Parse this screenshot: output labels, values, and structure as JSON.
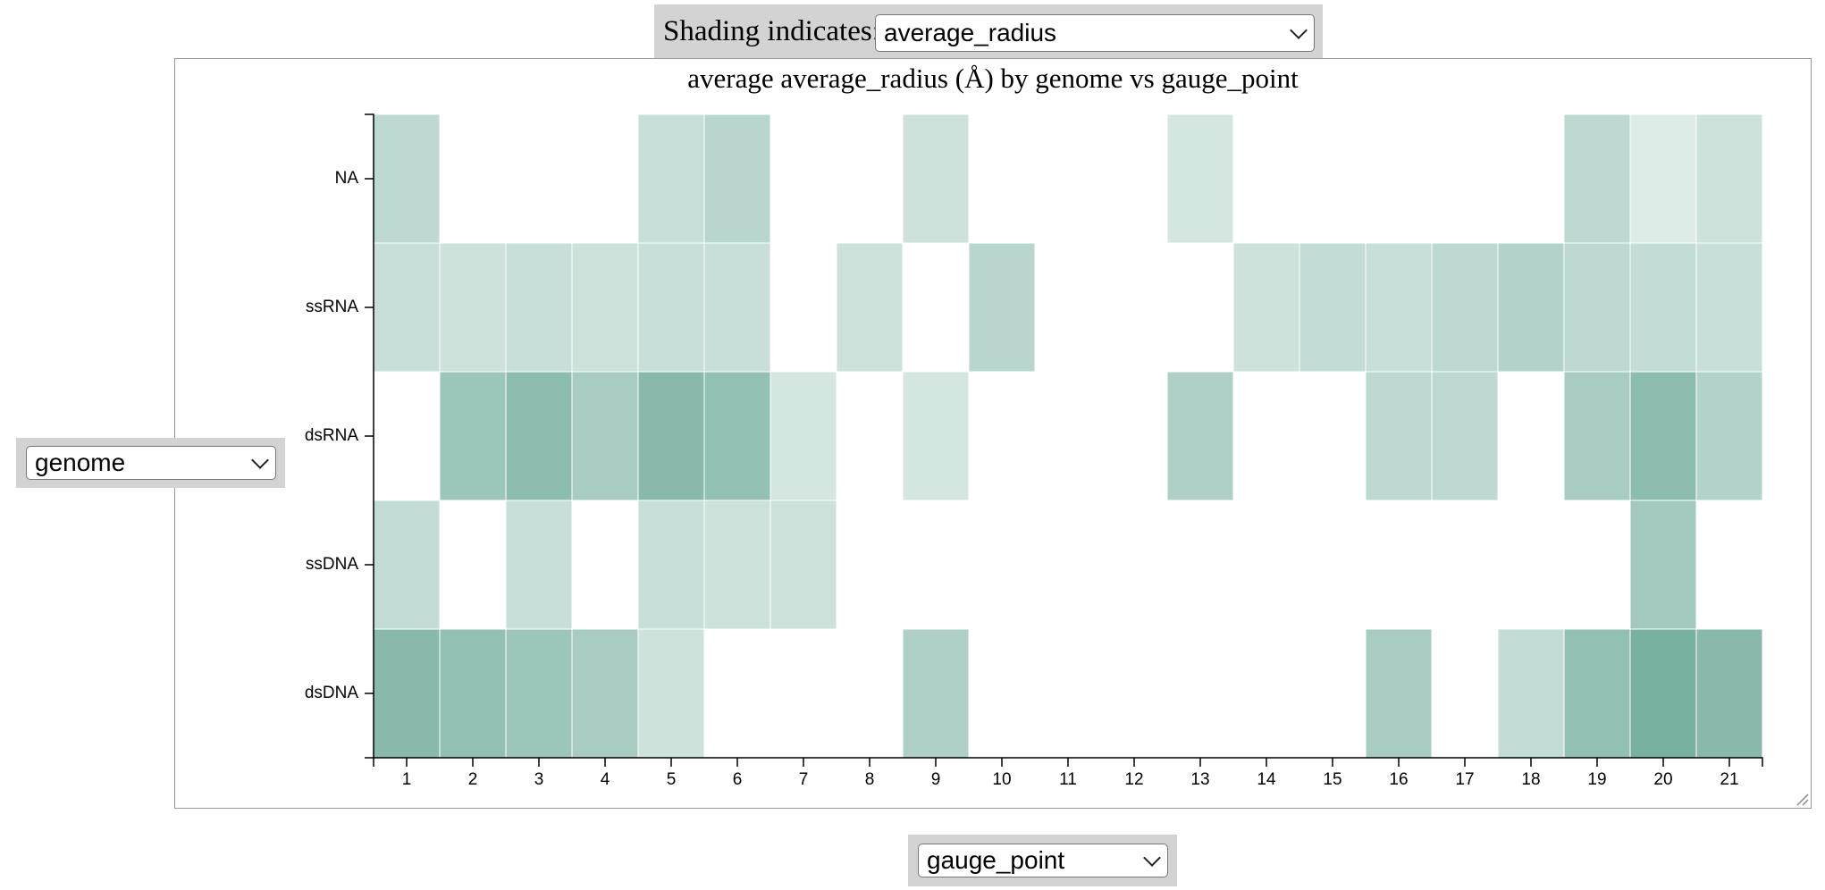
{
  "controls": {
    "shading_label": "Shading indicates:",
    "shading_value": "average_radius",
    "y_field_value": "genome",
    "x_field_value": "gauge_point"
  },
  "colors": {
    "heat_low": "#e3efeb",
    "heat_high": "#78b0a1",
    "grid_line": "#ffffff"
  },
  "chart_data": {
    "type": "heatmap",
    "title": "average average_radius (Å) by genome vs gauge_point",
    "x_categories": [
      "1",
      "2",
      "3",
      "4",
      "5",
      "6",
      "7",
      "8",
      "9",
      "10",
      "11",
      "12",
      "13",
      "14",
      "15",
      "16",
      "17",
      "18",
      "19",
      "20",
      "21"
    ],
    "y_categories": [
      "NA",
      "ssRNA",
      "dsRNA",
      "ssDNA",
      "dsDNA"
    ],
    "value_range": [
      0,
      1
    ],
    "values": [
      [
        0.35,
        null,
        null,
        null,
        0.25,
        0.4,
        null,
        null,
        0.2,
        null,
        null,
        null,
        0.15,
        null,
        null,
        null,
        null,
        null,
        0.35,
        0.05,
        0.2
      ],
      [
        0.25,
        0.2,
        0.25,
        0.2,
        0.25,
        0.25,
        null,
        0.2,
        null,
        0.4,
        null,
        null,
        null,
        0.2,
        0.3,
        0.25,
        0.35,
        0.45,
        0.35,
        0.3,
        0.25
      ],
      [
        null,
        0.65,
        0.8,
        0.55,
        0.85,
        0.75,
        0.15,
        null,
        0.15,
        null,
        null,
        null,
        0.5,
        null,
        null,
        0.35,
        0.35,
        null,
        0.55,
        0.8,
        0.45
      ],
      [
        0.3,
        null,
        0.25,
        null,
        0.25,
        0.2,
        0.2,
        null,
        null,
        null,
        null,
        null,
        null,
        null,
        null,
        null,
        null,
        null,
        null,
        0.6,
        null
      ],
      [
        0.85,
        0.75,
        0.65,
        0.55,
        0.2,
        null,
        null,
        null,
        0.5,
        null,
        null,
        null,
        null,
        null,
        null,
        0.55,
        null,
        0.3,
        0.75,
        1.0,
        0.85
      ]
    ]
  }
}
